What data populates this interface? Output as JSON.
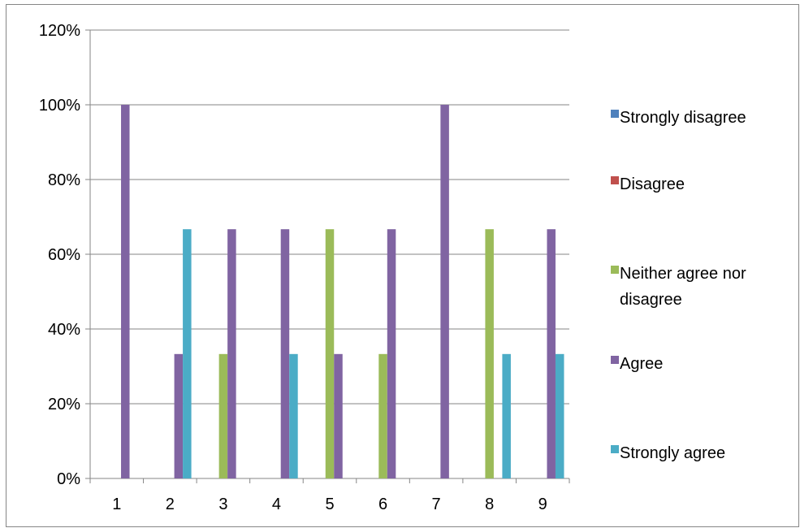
{
  "chart_data": {
    "type": "bar",
    "categories": [
      "1",
      "2",
      "3",
      "4",
      "5",
      "6",
      "7",
      "8",
      "9"
    ],
    "series": [
      {
        "name": "Strongly disagree",
        "color": "#4f81bd",
        "values": [
          0,
          0,
          0,
          0,
          0,
          0,
          0,
          0,
          0
        ]
      },
      {
        "name": "Disagree",
        "color": "#c0504d",
        "values": [
          0,
          0,
          0,
          0,
          0,
          0,
          0,
          0,
          0
        ]
      },
      {
        "name": "Neither agree nor disagree",
        "legend_lines": [
          "Neither agree nor",
          "disagree"
        ],
        "color": "#9bbb59",
        "values": [
          0,
          0,
          0.333,
          0,
          0.667,
          0.333,
          0,
          0.667,
          0
        ]
      },
      {
        "name": "Agree",
        "color": "#8064a2",
        "values": [
          1.0,
          0.333,
          0.667,
          0.667,
          0.333,
          0.667,
          1.0,
          0,
          0.667
        ]
      },
      {
        "name": "Strongly agree",
        "color": "#4bacc6",
        "values": [
          0,
          0.667,
          0,
          0.333,
          0,
          0,
          0,
          0.333,
          0.333
        ]
      }
    ],
    "ylim": [
      0,
      1.2
    ],
    "yticks": [
      "0%",
      "20%",
      "40%",
      "60%",
      "80%",
      "100%",
      "120%"
    ],
    "grid": true,
    "legend_position": "right"
  }
}
